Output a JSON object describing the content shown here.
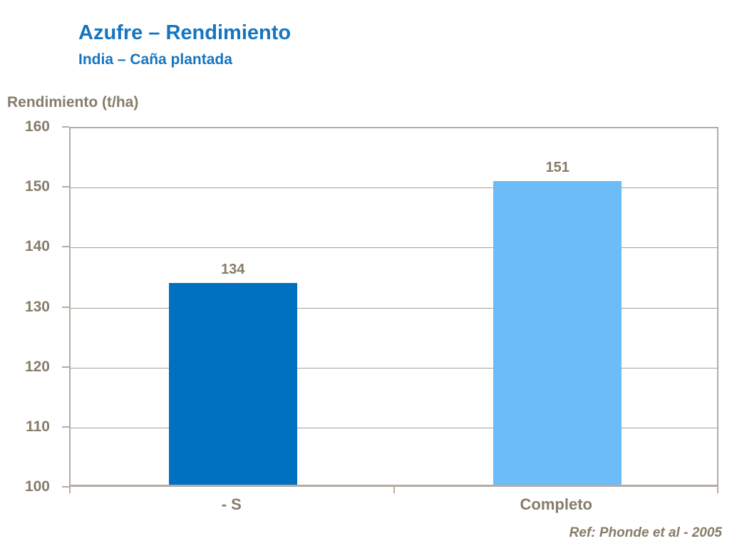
{
  "header": {
    "title": "Azufre – Rendimiento",
    "subtitle": "India – Caña plantada"
  },
  "footnote": "Ref: Phonde et al - 2005",
  "colors": {
    "title_blue": "#1575C0",
    "text_brown": "#867C69",
    "frame": "#B3ACA3",
    "gridline": "#A6A19A",
    "bar_minus_s": "#0070C0",
    "bar_completo": "#6CBDF7"
  },
  "chart_data": {
    "type": "bar",
    "categories": [
      "- S",
      "Completo"
    ],
    "values": [
      134,
      151
    ],
    "bar_colors": [
      "#0070C0",
      "#6CBDF7"
    ],
    "data_labels": [
      "134",
      "151"
    ],
    "title": "Azufre – Rendimiento",
    "subtitle": "India – Caña plantada",
    "ylabel": "Rendimiento (t/ha)",
    "xlabel": "",
    "ylim": [
      100,
      160
    ],
    "ytick_step": 10,
    "yticks": [
      100,
      110,
      120,
      130,
      140,
      150,
      160
    ],
    "grid": "horizontal",
    "legend": "none",
    "annotation": "Ref: Phonde et al - 2005"
  }
}
